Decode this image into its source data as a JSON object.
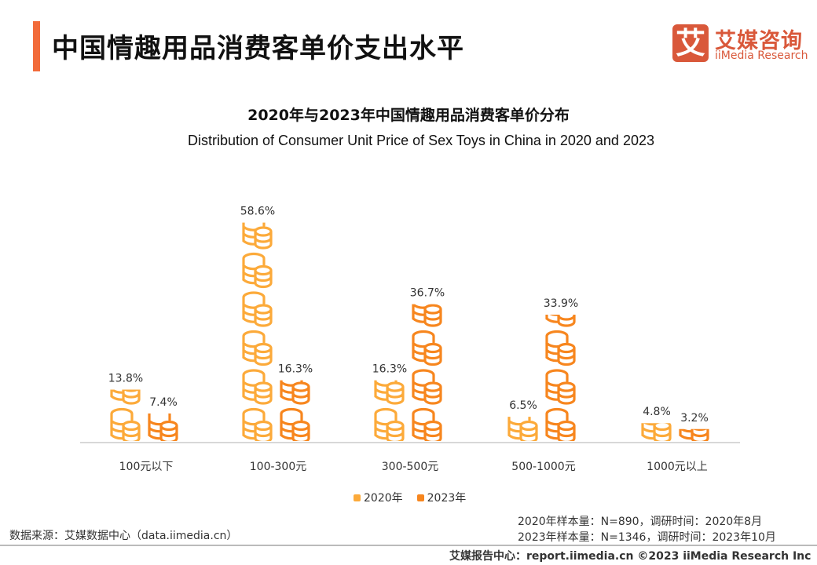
{
  "header": {
    "title": "中国情趣用品消费客单价支出水平",
    "logo_mark": "艾",
    "logo_cn": "艾媒咨询",
    "logo_en": "iiMedia Research"
  },
  "chart_data": {
    "type": "bar",
    "style": "pictograph",
    "title": "2020年与2023年中国情趣用品消费客单价分布",
    "subtitle": "Distribution of Consumer Unit Price of Sex Toys in China in 2020 and 2023",
    "categories": [
      "100元以下",
      "100-300元",
      "300-500元",
      "500-1000元",
      "1000元以上"
    ],
    "series": [
      {
        "name": "2020年",
        "values": [
          13.8,
          58.6,
          16.3,
          6.5,
          4.8
        ],
        "labels": [
          "13.8%",
          "58.6%",
          "16.3%",
          "6.5%",
          "4.8%"
        ],
        "color": "#FCAA3A"
      },
      {
        "name": "2023年",
        "values": [
          7.4,
          16.3,
          36.7,
          33.9,
          3.2
        ],
        "labels": [
          "7.4%",
          "16.3%",
          "36.7%",
          "33.9%",
          "3.2%"
        ],
        "color": "#F7861E"
      }
    ],
    "unit": "%",
    "ylim": [
      0,
      60
    ],
    "grid": false,
    "legend": "bottom",
    "icon": "coin-stack-icon"
  },
  "footer": {
    "source": "数据来源：艾媒数据中心（data.iimedia.cn）",
    "sample_2020": "2020年样本量：N=890，调研时间：2020年8月",
    "sample_2023": "2023年样本量：N=1346，调研时间：2023年10月",
    "report": "艾媒报告中心：report.iimedia.cn ©2023  iiMedia Research  Inc"
  }
}
